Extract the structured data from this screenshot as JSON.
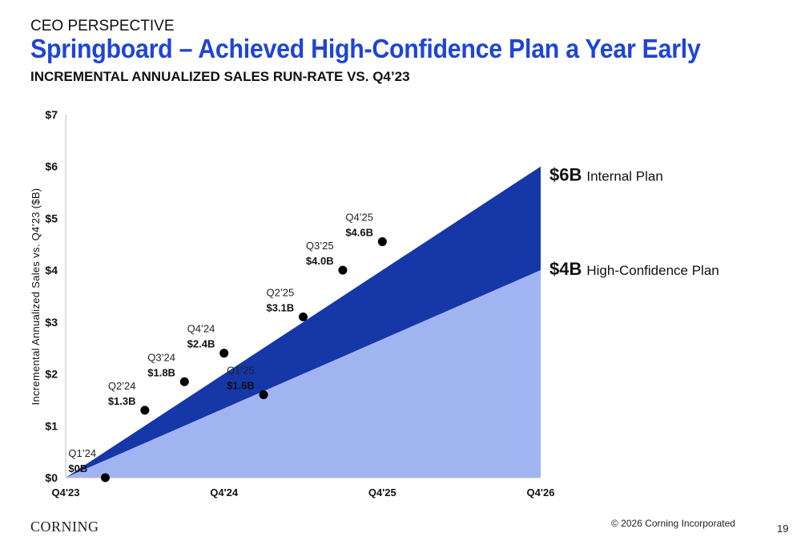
{
  "header": {
    "kicker": "CEO PERSPECTIVE",
    "title": "Springboard – Achieved High-Confidence Plan a Year Early",
    "subtitle": "INCREMENTAL ANNUALIZED SALES RUN-RATE VS. Q4’23"
  },
  "footer": {
    "logo": "CORNING",
    "copyright": "© 2026 Corning Incorporated",
    "page_number": "19"
  },
  "colors": {
    "title_blue": "#1f45d6",
    "internal_plan_band": "#1537a8",
    "high_confidence_band": "#a0b4f2",
    "points": "#000000"
  },
  "chart_data": {
    "type": "area",
    "ylabel": "Incremental Annualized Sales vs. Q4’23 ($B)",
    "xlabel": "",
    "x_ticks": [
      "Q4'23",
      "Q4'24",
      "Q4'25",
      "Q4'26"
    ],
    "y_ticks": [
      "$0",
      "$1",
      "$2",
      "$3",
      "$4",
      "$5",
      "$6",
      "$7"
    ],
    "ylim": [
      0,
      7
    ],
    "x_range_quarters": [
      0,
      12
    ],
    "grid": false,
    "plans": [
      {
        "name": "Internal Plan",
        "value_label": "$6B",
        "start": 0,
        "end": 6
      },
      {
        "name": "High-Confidence Plan",
        "value_label": "$4B",
        "start": 0,
        "end": 4
      }
    ],
    "points": [
      {
        "quarter": "Q1’24",
        "label": "$0B",
        "x": 1,
        "y": 0.0
      },
      {
        "quarter": "Q2’24",
        "label": "$1.3B",
        "x": 2,
        "y": 1.3
      },
      {
        "quarter": "Q3’24",
        "label": "$1.8B",
        "x": 3,
        "y": 1.85
      },
      {
        "quarter": "Q4’24",
        "label": "$2.4B",
        "x": 4,
        "y": 2.4
      },
      {
        "quarter": "Q1’25",
        "label": "$1.6B",
        "x": 5,
        "y": 1.6
      },
      {
        "quarter": "Q2’25",
        "label": "$3.1B",
        "x": 6,
        "y": 3.1
      },
      {
        "quarter": "Q3’25",
        "label": "$4.0B",
        "x": 7,
        "y": 4.0
      },
      {
        "quarter": "Q4’25",
        "label": "$4.6B",
        "x": 8,
        "y": 4.55
      }
    ]
  }
}
